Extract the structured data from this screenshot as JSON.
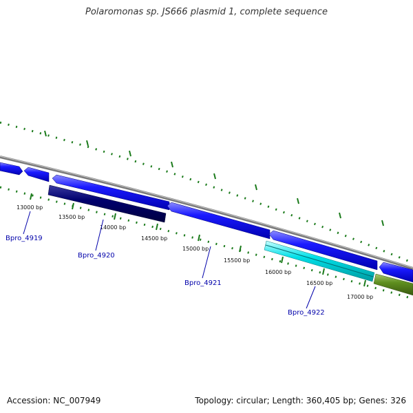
{
  "title": "Polaromonas sp. JS666 plasmid 1, complete sequence",
  "footer": {
    "accession": "Accession: NC_007949",
    "summary": "Topology: circular; Length: 360,405 bp; Genes: 326"
  },
  "ticks": [
    {
      "label": "13000 bp"
    },
    {
      "label": "13500 bp"
    },
    {
      "label": "14000 bp"
    },
    {
      "label": "14500 bp"
    },
    {
      "label": "15000 bp"
    },
    {
      "label": "15500 bp"
    },
    {
      "label": "16000 bp"
    },
    {
      "label": "16500 bp"
    },
    {
      "label": "17000 bp"
    }
  ],
  "genes": [
    {
      "label": "Bpro_4919"
    },
    {
      "label": "Bpro_4920"
    },
    {
      "label": "Bpro_4921"
    },
    {
      "label": "Bpro_4922"
    }
  ],
  "colors": {
    "forward_cds": "#1010ee",
    "navy_cds": "#000070",
    "cyan_cds": "#00d0d8",
    "olive_cds": "#5a8a1a",
    "backbone": "#888888",
    "ticks": "#1a7a1a",
    "label_line": "#0000aa"
  }
}
